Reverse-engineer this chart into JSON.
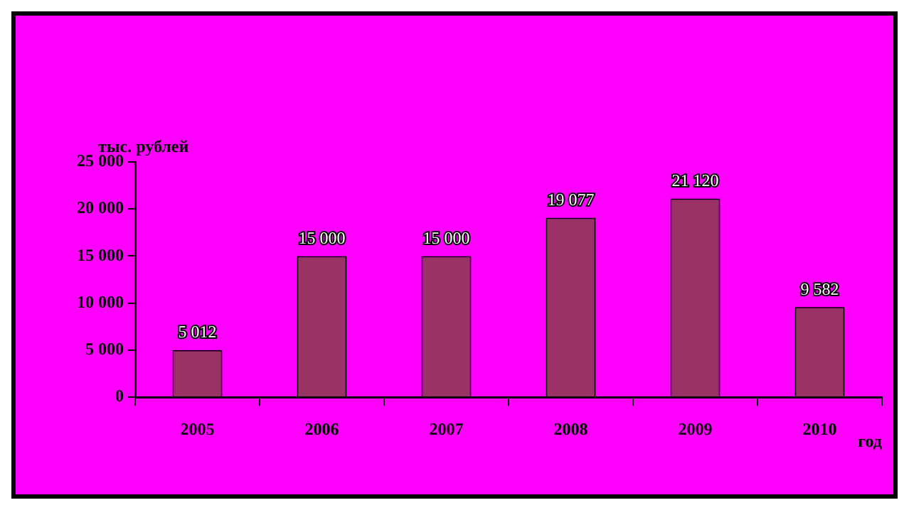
{
  "chart_data": {
    "type": "bar",
    "ylabel": "тыс. рублей",
    "xlabel": "год",
    "categories": [
      "2005",
      "2006",
      "2007",
      "2008",
      "2009",
      "2010"
    ],
    "values": [
      5012,
      15000,
      15000,
      19077,
      21120,
      9582
    ],
    "value_labels": [
      "5 012",
      "15 000",
      "15 000",
      "19 077",
      "21 120",
      "9 582"
    ],
    "color": "#993366",
    "ylim": [
      0,
      25000
    ],
    "yticks": [
      {
        "value": 0,
        "label": "0"
      },
      {
        "value": 5000,
        "label": "5 000"
      },
      {
        "value": 10000,
        "label": "10 000"
      },
      {
        "value": 15000,
        "label": "15 000"
      },
      {
        "value": 20000,
        "label": "20 000"
      },
      {
        "value": 25000,
        "label": "25 000"
      }
    ],
    "grid": false,
    "legend": false
  }
}
